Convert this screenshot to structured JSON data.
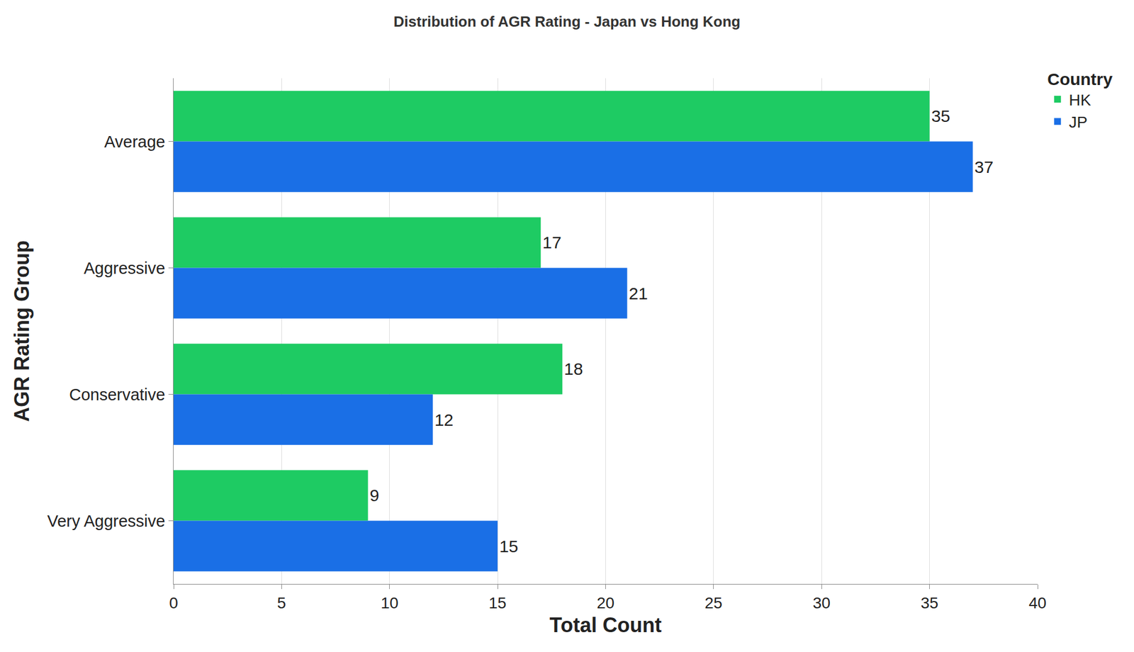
{
  "chart_data": {
    "type": "bar",
    "orientation": "horizontal",
    "title": "Distribution of AGR Rating - Japan vs Hong Kong",
    "xlabel": "Total Count",
    "ylabel": "AGR Rating Group",
    "legend_title": "Country",
    "legend": "upper right",
    "categories": [
      "Average",
      "Aggressive",
      "Conservative",
      "Very Aggressive"
    ],
    "series": [
      {
        "name": "HK",
        "color": "#1ecb63",
        "values": [
          35,
          17,
          18,
          9
        ]
      },
      {
        "name": "JP",
        "color": "#1a6fe6",
        "values": [
          37,
          21,
          12,
          15
        ]
      }
    ],
    "xlim": [
      0,
      40
    ],
    "xticks": [
      0,
      5,
      10,
      15,
      20,
      25,
      30,
      35,
      40
    ],
    "grid": true,
    "data_labels": true
  }
}
